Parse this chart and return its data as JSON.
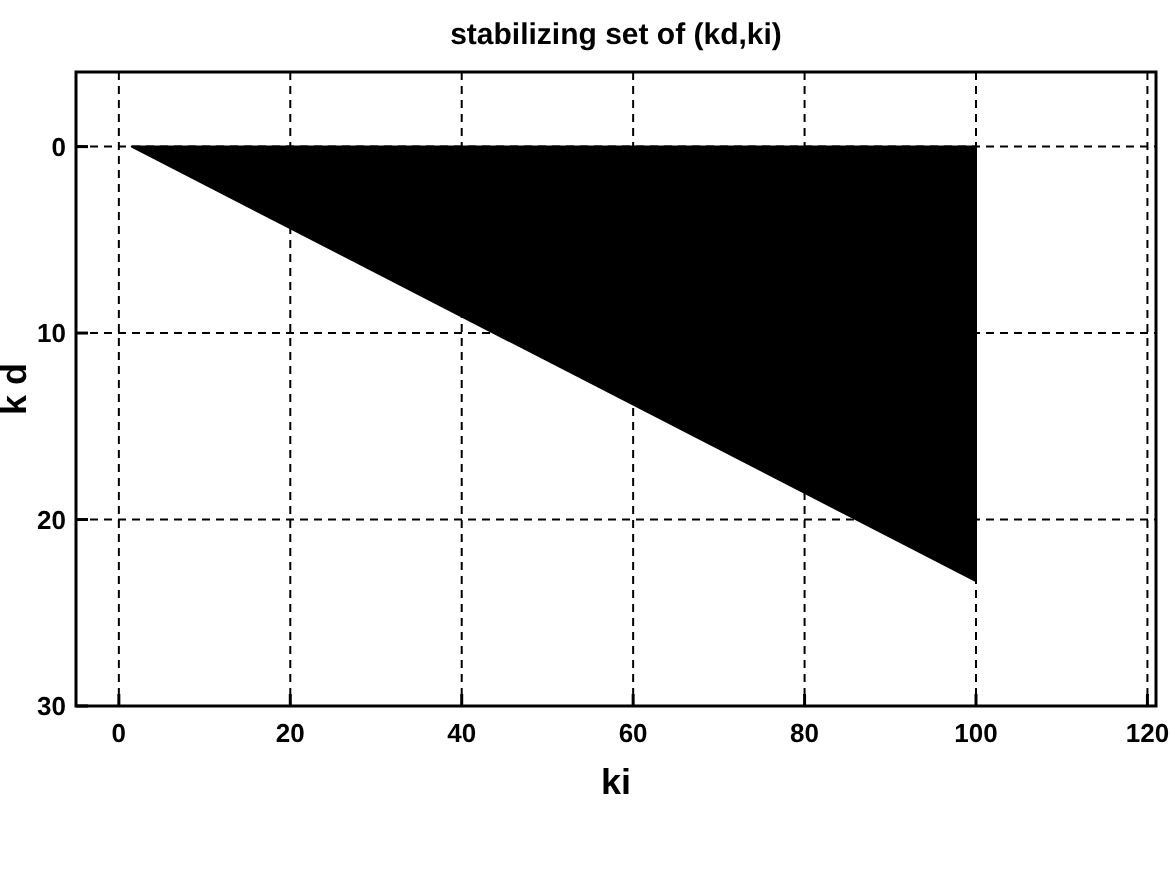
{
  "chart_data": {
    "type": "area",
    "title": "stabilizing set of (kd,ki)",
    "xlabel": "ki",
    "ylabel": "k d",
    "x": [
      1.5,
      100
    ],
    "series": [
      {
        "color": "#000000",
        "values": [
          0,
          23.3
        ]
      }
    ],
    "xlim": [
      -5,
      121
    ],
    "ylim": [
      30,
      -4
    ],
    "xticks": [
      0,
      20,
      40,
      60,
      80,
      100,
      120
    ],
    "yticks": [
      0,
      10,
      20,
      30
    ],
    "grid": true,
    "line_style": "dashed"
  }
}
